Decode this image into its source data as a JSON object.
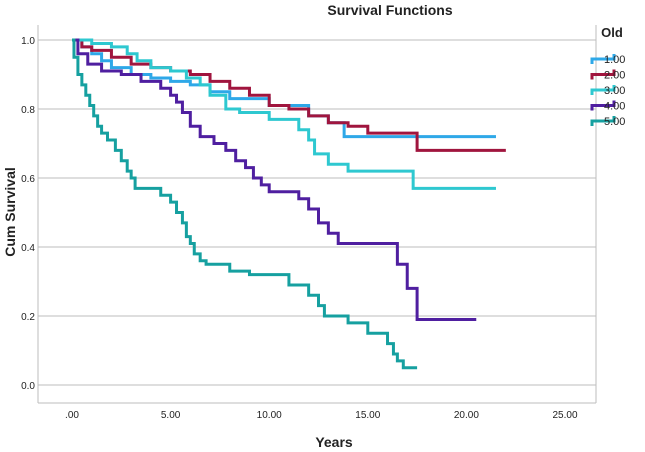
{
  "chart_data": {
    "type": "line",
    "step": true,
    "title": "Survival Functions",
    "xlabel": "Years",
    "ylabel": "Cum Survival",
    "xlim": [
      0,
      26
    ],
    "ylim": [
      0,
      1.0
    ],
    "x_ticks": [
      {
        "value": 0,
        "label": ".00"
      },
      {
        "value": 5,
        "label": "5.00"
      },
      {
        "value": 10,
        "label": "10.00"
      },
      {
        "value": 15,
        "label": "15.00"
      },
      {
        "value": 20,
        "label": "20.00"
      },
      {
        "value": 25,
        "label": "25.00"
      }
    ],
    "y_ticks": [
      {
        "value": 0.0,
        "label": "0.0"
      },
      {
        "value": 0.2,
        "label": "0.2"
      },
      {
        "value": 0.4,
        "label": "0.4"
      },
      {
        "value": 0.6,
        "label": "0.6"
      },
      {
        "value": 0.8,
        "label": "0.8"
      },
      {
        "value": 1.0,
        "label": "1.0"
      }
    ],
    "grid": "horizontal",
    "legend": {
      "title": "Old",
      "position": "right"
    },
    "series": [
      {
        "name": "1.00",
        "color": "#2ea8e8",
        "points": [
          [
            0,
            1
          ],
          [
            0.5,
            0.98
          ],
          [
            1,
            0.96
          ],
          [
            1.5,
            0.94
          ],
          [
            2,
            0.92
          ],
          [
            3,
            0.9
          ],
          [
            4,
            0.89
          ],
          [
            5,
            0.88
          ],
          [
            6,
            0.87
          ],
          [
            7,
            0.85
          ],
          [
            8,
            0.83
          ],
          [
            10,
            0.81
          ],
          [
            12,
            0.78
          ],
          [
            13,
            0.76
          ],
          [
            13.8,
            0.72
          ],
          [
            21.5,
            0.72
          ]
        ]
      },
      {
        "name": "2.00",
        "color": "#a0153e",
        "points": [
          [
            0,
            1
          ],
          [
            0.5,
            0.98
          ],
          [
            1,
            0.97
          ],
          [
            2,
            0.95
          ],
          [
            3,
            0.93
          ],
          [
            4,
            0.92
          ],
          [
            5,
            0.91
          ],
          [
            6,
            0.9
          ],
          [
            7,
            0.88
          ],
          [
            8,
            0.86
          ],
          [
            9,
            0.84
          ],
          [
            10,
            0.81
          ],
          [
            11,
            0.8
          ],
          [
            12,
            0.78
          ],
          [
            13,
            0.76
          ],
          [
            14,
            0.75
          ],
          [
            15,
            0.73
          ],
          [
            17.5,
            0.68
          ],
          [
            22,
            0.68
          ]
        ]
      },
      {
        "name": "3.00",
        "color": "#2ec8d0",
        "points": [
          [
            0,
            1
          ],
          [
            1,
            0.99
          ],
          [
            2,
            0.98
          ],
          [
            2.8,
            0.96
          ],
          [
            3.3,
            0.94
          ],
          [
            4,
            0.92
          ],
          [
            5,
            0.91
          ],
          [
            5.8,
            0.89
          ],
          [
            6.5,
            0.87
          ],
          [
            7,
            0.84
          ],
          [
            7.8,
            0.8
          ],
          [
            8.5,
            0.79
          ],
          [
            10,
            0.77
          ],
          [
            11.5,
            0.74
          ],
          [
            12,
            0.71
          ],
          [
            12.3,
            0.67
          ],
          [
            13,
            0.64
          ],
          [
            14,
            0.62
          ],
          [
            17.3,
            0.57
          ],
          [
            21.5,
            0.57
          ]
        ]
      },
      {
        "name": "4.00",
        "color": "#4f1fa0",
        "points": [
          [
            0,
            1
          ],
          [
            0.3,
            0.96
          ],
          [
            0.8,
            0.93
          ],
          [
            1.5,
            0.91
          ],
          [
            2.5,
            0.9
          ],
          [
            3.5,
            0.88
          ],
          [
            4.5,
            0.86
          ],
          [
            5,
            0.84
          ],
          [
            5.3,
            0.82
          ],
          [
            5.6,
            0.79
          ],
          [
            6,
            0.75
          ],
          [
            6.5,
            0.72
          ],
          [
            7.2,
            0.7
          ],
          [
            7.8,
            0.68
          ],
          [
            8.3,
            0.65
          ],
          [
            8.8,
            0.63
          ],
          [
            9.2,
            0.6
          ],
          [
            9.6,
            0.58
          ],
          [
            10,
            0.56
          ],
          [
            11.5,
            0.54
          ],
          [
            12,
            0.51
          ],
          [
            12.5,
            0.47
          ],
          [
            13,
            0.44
          ],
          [
            13.5,
            0.41
          ],
          [
            16.5,
            0.35
          ],
          [
            17,
            0.28
          ],
          [
            17.5,
            0.19
          ],
          [
            20.5,
            0.19
          ]
        ]
      },
      {
        "name": "5.00",
        "color": "#16a0a0",
        "points": [
          [
            0,
            1
          ],
          [
            0.1,
            0.95
          ],
          [
            0.3,
            0.9
          ],
          [
            0.5,
            0.87
          ],
          [
            0.7,
            0.84
          ],
          [
            0.9,
            0.81
          ],
          [
            1.1,
            0.78
          ],
          [
            1.3,
            0.75
          ],
          [
            1.5,
            0.73
          ],
          [
            1.8,
            0.71
          ],
          [
            2.2,
            0.68
          ],
          [
            2.5,
            0.65
          ],
          [
            2.8,
            0.62
          ],
          [
            3.0,
            0.6
          ],
          [
            3.2,
            0.57
          ],
          [
            4.5,
            0.55
          ],
          [
            5,
            0.53
          ],
          [
            5.3,
            0.5
          ],
          [
            5.6,
            0.47
          ],
          [
            5.8,
            0.43
          ],
          [
            6,
            0.41
          ],
          [
            6.2,
            0.38
          ],
          [
            6.5,
            0.36
          ],
          [
            6.8,
            0.35
          ],
          [
            8,
            0.33
          ],
          [
            9,
            0.32
          ],
          [
            11,
            0.29
          ],
          [
            12,
            0.26
          ],
          [
            12.5,
            0.23
          ],
          [
            12.8,
            0.2
          ],
          [
            14,
            0.18
          ],
          [
            15,
            0.15
          ],
          [
            16,
            0.12
          ],
          [
            16.3,
            0.09
          ],
          [
            16.5,
            0.07
          ],
          [
            16.8,
            0.05
          ],
          [
            17.5,
            0.05
          ]
        ]
      }
    ]
  }
}
